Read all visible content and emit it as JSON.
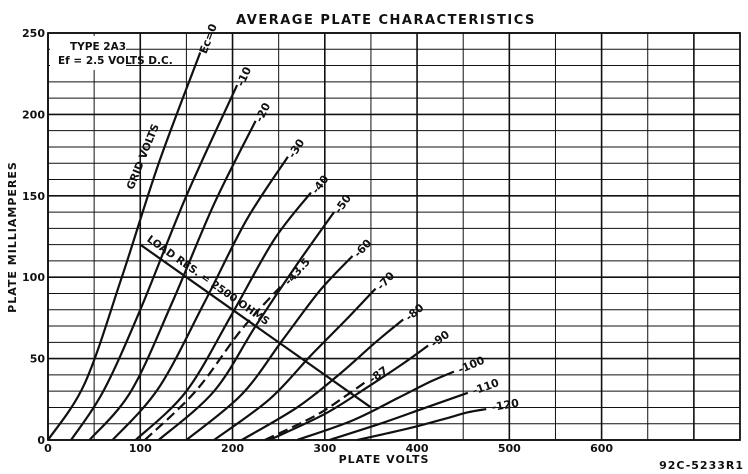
{
  "chart_data": {
    "type": "line",
    "title": "AVERAGE PLATE CHARACTERISTICS",
    "xlabel": "PLATE VOLTS",
    "ylabel": "PLATE MILLIAMPERES",
    "xlim": [
      0,
      750
    ],
    "ylim": [
      0,
      250
    ],
    "x_major_ticks": [
      0,
      100,
      200,
      300,
      400,
      500,
      600
    ],
    "y_major_ticks": [
      0,
      50,
      100,
      150,
      200,
      250
    ],
    "grid": true,
    "tube_label": "TYPE 2A3",
    "filament_label": "Ef = 2.5 VOLTS D.C.",
    "figure_code": "92C-5233R1",
    "grid_volts_label": "GRID VOLTS",
    "load_line": {
      "label": "LOAD RES. = 2500 OHMS",
      "points": [
        [
          100,
          120
        ],
        [
          350,
          20
        ]
      ]
    },
    "series": [
      {
        "name": "Ec=0",
        "x": [
          0,
          40,
          80,
          120,
          165
        ],
        "y": [
          0,
          35,
          100,
          170,
          238
        ]
      },
      {
        "name": "-10",
        "x": [
          25,
          60,
          100,
          150,
          205
        ],
        "y": [
          0,
          30,
          80,
          150,
          218
        ]
      },
      {
        "name": "-20",
        "x": [
          45,
          90,
          135,
          180,
          225
        ],
        "y": [
          0,
          30,
          85,
          145,
          196
        ]
      },
      {
        "name": "-30",
        "x": [
          70,
          120,
          170,
          215,
          260
        ],
        "y": [
          0,
          32,
          85,
          135,
          174
        ]
      },
      {
        "name": "-40",
        "x": [
          95,
          150,
          200,
          245,
          285
        ],
        "y": [
          0,
          30,
          78,
          123,
          152
        ]
      },
      {
        "name": "-43.5",
        "x": [
          105,
          160,
          210,
          255
        ],
        "y": [
          0,
          30,
          68,
          96
        ]
      },
      {
        "name": "-50",
        "x": [
          120,
          180,
          225,
          270,
          310
        ],
        "y": [
          0,
          30,
          70,
          108,
          140
        ]
      },
      {
        "name": "-60",
        "x": [
          150,
          210,
          255,
          295,
          330
        ],
        "y": [
          0,
          28,
          62,
          92,
          113
        ]
      },
      {
        "name": "-70",
        "x": [
          180,
          240,
          285,
          325,
          355
        ],
        "y": [
          0,
          25,
          52,
          75,
          93
        ]
      },
      {
        "name": "-80",
        "x": [
          210,
          270,
          315,
          355,
          385
        ],
        "y": [
          0,
          20,
          40,
          60,
          74
        ]
      },
      {
        "name": "-87",
        "x": [
          235,
          290,
          325,
          345
        ],
        "y": [
          0,
          15,
          28,
          36
        ]
      },
      {
        "name": "-90",
        "x": [
          240,
          300,
          345,
          385,
          412
        ],
        "y": [
          0,
          16,
          32,
          47,
          58
        ]
      },
      {
        "name": "-100",
        "x": [
          270,
          330,
          380,
          415,
          440
        ],
        "y": [
          0,
          12,
          26,
          36,
          42
        ]
      },
      {
        "name": "-110",
        "x": [
          305,
          360,
          405,
          435,
          455
        ],
        "y": [
          0,
          10,
          19,
          25,
          29
        ]
      },
      {
        "name": "-120",
        "x": [
          335,
          390,
          430,
          455,
          475
        ],
        "y": [
          0,
          7,
          13,
          17,
          19
        ]
      }
    ]
  }
}
